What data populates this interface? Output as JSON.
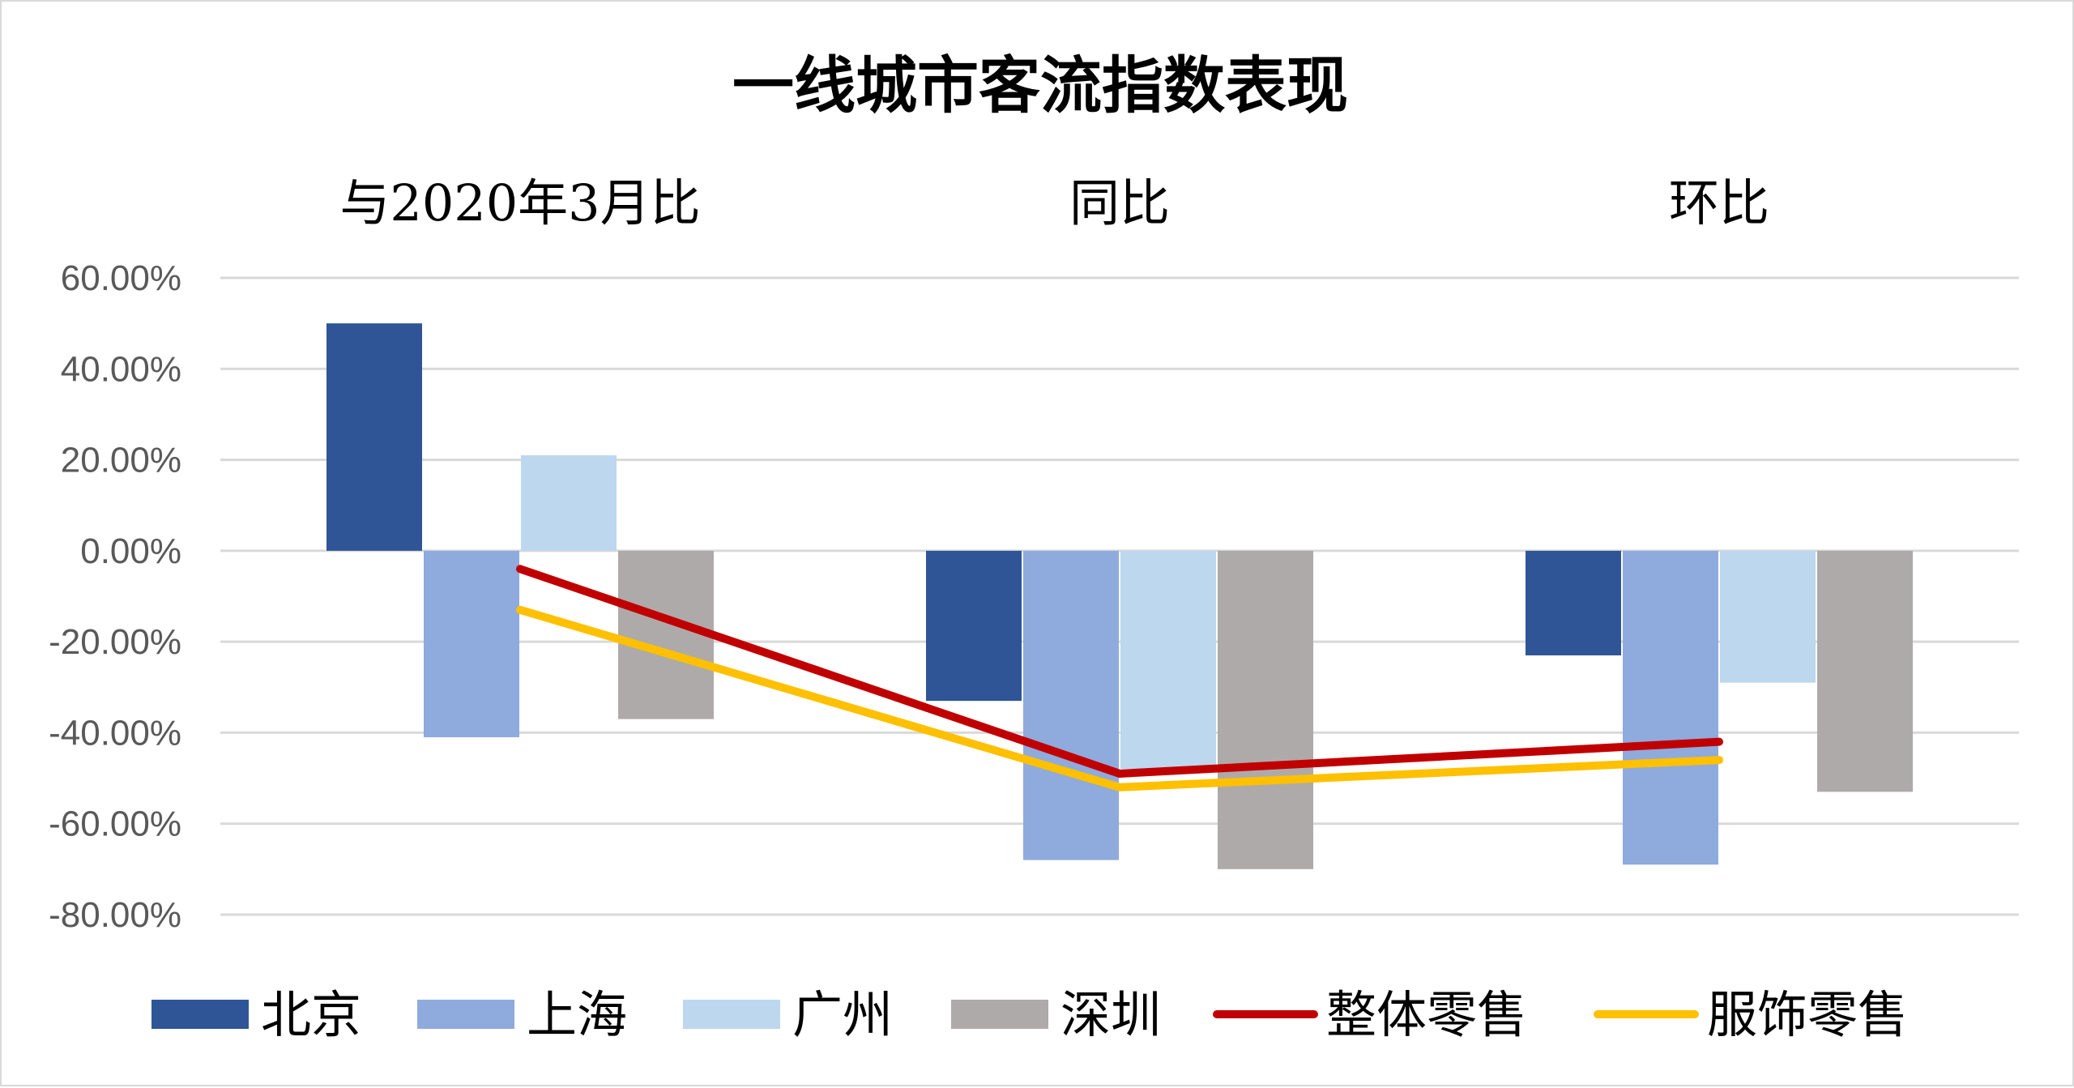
{
  "chart_data": {
    "type": "bar",
    "title": "一线城市客流指数表现",
    "categories": [
      "与2020年3月比",
      "同比",
      "环比"
    ],
    "ylim": [
      -0.8,
      0.6
    ],
    "yticks": [
      {
        "value": 0.6,
        "label": "60.00%"
      },
      {
        "value": 0.4,
        "label": "40.00%"
      },
      {
        "value": 0.2,
        "label": "20.00%"
      },
      {
        "value": 0.0,
        "label": "0.00%"
      },
      {
        "value": -0.2,
        "label": "-20.00%"
      },
      {
        "value": -0.4,
        "label": "-40.00%"
      },
      {
        "value": -0.6,
        "label": "-60.00%"
      },
      {
        "value": -0.8,
        "label": "-80.00%"
      }
    ],
    "grid": true,
    "legend_position": "bottom",
    "series": [
      {
        "name": "北京",
        "kind": "bar",
        "color": "#2f5597",
        "values": [
          0.5,
          -0.33,
          -0.23
        ]
      },
      {
        "name": "上海",
        "kind": "bar",
        "color": "#8faadc",
        "values": [
          -0.41,
          -0.68,
          -0.69
        ]
      },
      {
        "name": "广州",
        "kind": "bar",
        "color": "#bdd7ee",
        "values": [
          0.21,
          -0.48,
          -0.29
        ]
      },
      {
        "name": "深圳",
        "kind": "bar",
        "color": "#aeaaaa",
        "values": [
          -0.37,
          -0.7,
          -0.53
        ]
      },
      {
        "name": "整体零售",
        "kind": "line",
        "color": "#c00000",
        "values": [
          -0.04,
          -0.49,
          -0.42
        ]
      },
      {
        "name": "服饰零售",
        "kind": "line",
        "color": "#ffc000",
        "values": [
          -0.13,
          -0.52,
          -0.46
        ]
      }
    ]
  }
}
